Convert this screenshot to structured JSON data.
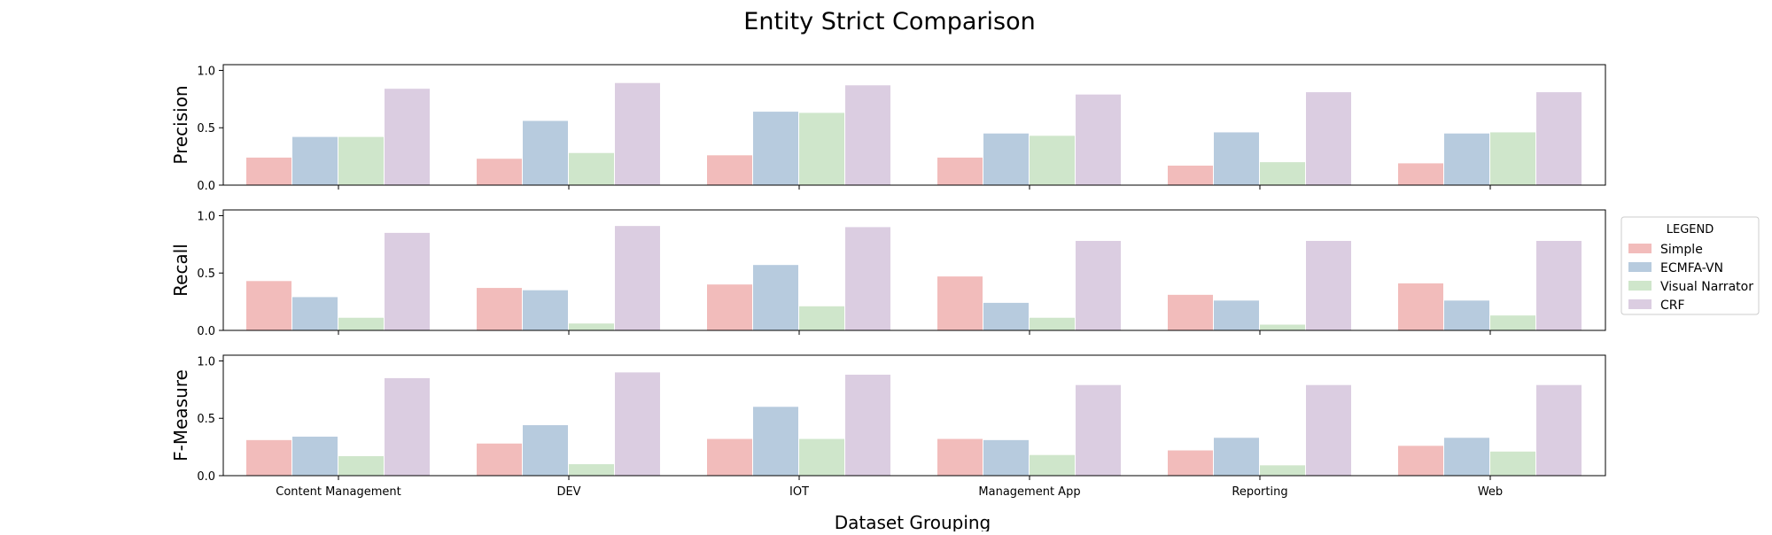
{
  "chart_data": {
    "type": "bar",
    "title": "Entity Strict Comparison",
    "xlabel": "Dataset Grouping",
    "categories": [
      "Content Management",
      "DEV",
      "IOT",
      "Management App",
      "Reporting",
      "Web"
    ],
    "legend": {
      "title": "LEGEND",
      "placement": "right",
      "entries": [
        "Simple",
        "ECMFA-VN",
        "Visual Narrator",
        "CRF"
      ]
    },
    "series_colors": [
      "#f2bcbb",
      "#b7cbde",
      "#cfe6cb",
      "#dbcde1"
    ],
    "panels": [
      {
        "ylabel": "Precision",
        "ylim": [
          0,
          1.05
        ],
        "yticks": [
          "0.0",
          "0.5",
          "1.0"
        ],
        "series": [
          {
            "name": "Simple",
            "values": [
              0.24,
              0.23,
              0.26,
              0.24,
              0.17,
              0.19
            ]
          },
          {
            "name": "ECMFA-VN",
            "values": [
              0.42,
              0.56,
              0.64,
              0.45,
              0.46,
              0.45
            ]
          },
          {
            "name": "Visual Narrator",
            "values": [
              0.42,
              0.28,
              0.63,
              0.43,
              0.2,
              0.46
            ]
          },
          {
            "name": "CRF",
            "values": [
              0.84,
              0.89,
              0.87,
              0.79,
              0.81,
              0.81
            ]
          }
        ]
      },
      {
        "ylabel": "Recall",
        "ylim": [
          0,
          1.05
        ],
        "yticks": [
          "0.0",
          "0.5",
          "1.0"
        ],
        "series": [
          {
            "name": "Simple",
            "values": [
              0.43,
              0.37,
              0.4,
              0.47,
              0.31,
              0.41
            ]
          },
          {
            "name": "ECMFA-VN",
            "values": [
              0.29,
              0.35,
              0.57,
              0.24,
              0.26,
              0.26
            ]
          },
          {
            "name": "Visual Narrator",
            "values": [
              0.11,
              0.06,
              0.21,
              0.11,
              0.05,
              0.13
            ]
          },
          {
            "name": "CRF",
            "values": [
              0.85,
              0.91,
              0.9,
              0.78,
              0.78,
              0.78
            ]
          }
        ]
      },
      {
        "ylabel": "F-Measure",
        "ylim": [
          0,
          1.05
        ],
        "yticks": [
          "0.0",
          "0.5",
          "1.0"
        ],
        "series": [
          {
            "name": "Simple",
            "values": [
              0.31,
              0.28,
              0.32,
              0.32,
              0.22,
              0.26
            ]
          },
          {
            "name": "ECMFA-VN",
            "values": [
              0.34,
              0.44,
              0.6,
              0.31,
              0.33,
              0.33
            ]
          },
          {
            "name": "Visual Narrator",
            "values": [
              0.17,
              0.1,
              0.32,
              0.18,
              0.09,
              0.21
            ]
          },
          {
            "name": "CRF",
            "values": [
              0.85,
              0.9,
              0.88,
              0.79,
              0.79,
              0.79
            ]
          }
        ]
      }
    ],
    "grid": false
  }
}
